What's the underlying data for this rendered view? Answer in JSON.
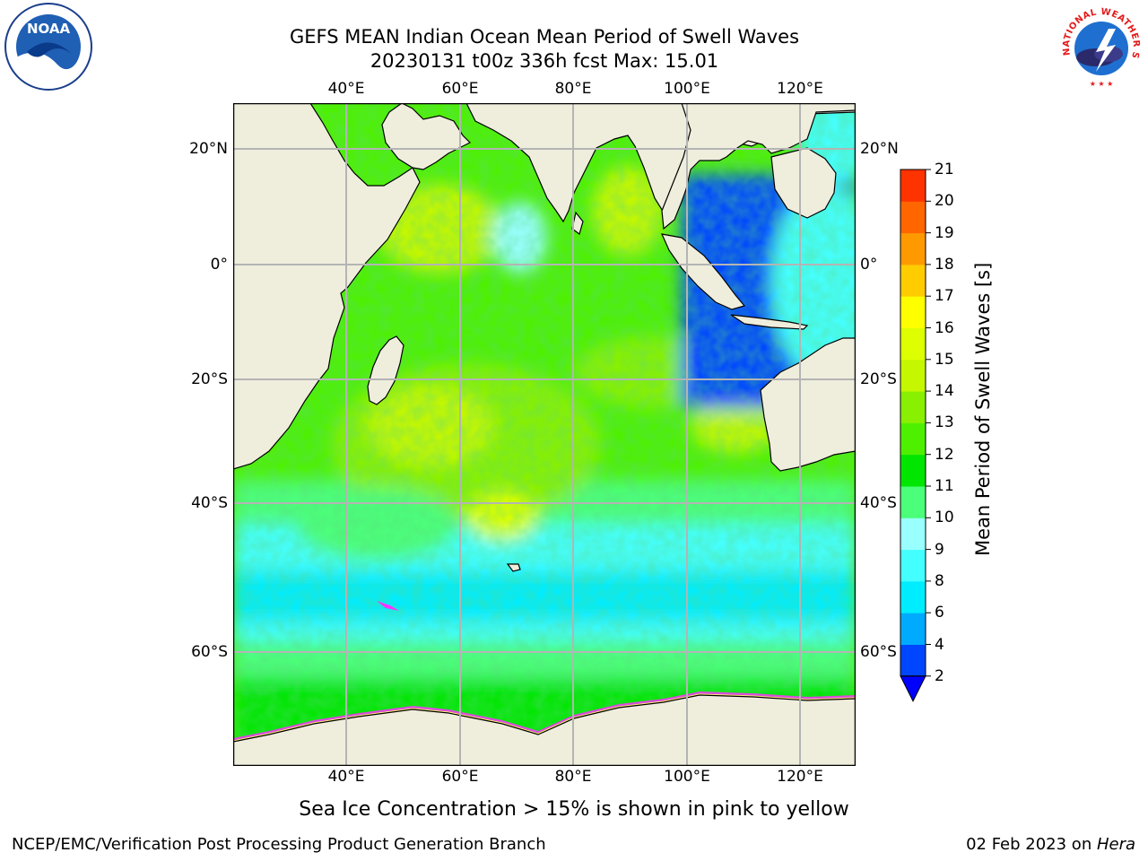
{
  "title": {
    "line1": "GEFS MEAN Indian Ocean Mean Period of Swell Waves",
    "line2": "20230131 t00z 336h fcst   Max: 15.01"
  },
  "logos": {
    "left": "NOAA",
    "right": "NATIONAL WEATHER SERVICE"
  },
  "map": {
    "lon_labels": [
      "40°E",
      "60°E",
      "80°E",
      "100°E",
      "120°E"
    ],
    "lat_labels_left": [
      "20°N",
      "0°",
      "20°S",
      "40°S",
      "60°S"
    ],
    "lat_labels_right": [
      "20°N",
      "0°",
      "20°S",
      "40°S",
      "60°S"
    ],
    "colors": {
      "land": "#efeedd",
      "grid": "#b4b4b4",
      "coast": "#000000"
    }
  },
  "colorbar": {
    "label": "Mean Period of Swell Waves [s]",
    "ticks": [
      "2",
      "4",
      "6",
      "8",
      "9",
      "10",
      "11",
      "12",
      "13",
      "14",
      "15",
      "16",
      "17",
      "18",
      "19",
      "20",
      "21"
    ],
    "colors": [
      "#0046ff",
      "#00aaff",
      "#00ecff",
      "#44ffff",
      "#9affff",
      "#4bff7a",
      "#00e600",
      "#4ef000",
      "#88f000",
      "#c4f700",
      "#ddff00",
      "#ffff00",
      "#ffcc00",
      "#ff9900",
      "#ff6600",
      "#ff3300",
      "#ff0000"
    ],
    "extend_color": "#0000ff",
    "range": [
      2,
      21
    ]
  },
  "footer": {
    "note": "Sea Ice Concentration > 15% is shown in pink to yellow",
    "left": "NCEP/EMC/Verification Post Processing Product Generation Branch",
    "right_date": "02 Feb 2023 on ",
    "right_host": "Hera"
  }
}
